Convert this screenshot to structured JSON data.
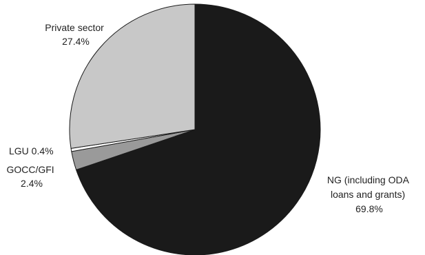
{
  "chart_data": {
    "type": "pie",
    "title": "",
    "slices": [
      {
        "label": "NG (including ODA loans and grants)",
        "value": 69.8,
        "color": "#1a1a1a",
        "label_lines": [
          "NG (including ODA",
          "loans and grants)",
          "69.8%"
        ]
      },
      {
        "label": "GOCC/GFI",
        "value": 2.4,
        "color": "#9a9a9a",
        "label_lines": [
          "GOCC/GFI",
          "2.4%"
        ]
      },
      {
        "label": "LGU",
        "value": 0.4,
        "color": "#ffffff",
        "label_lines": [
          "LGU 0.4%"
        ]
      },
      {
        "label": "Private sector",
        "value": 27.4,
        "color": "#c8c8c8",
        "label_lines": [
          "Private sector",
          "27.4%"
        ]
      }
    ],
    "start_angle_deg": 0,
    "direction": "clockwise",
    "slice_outline_color": "#1a1a1a",
    "legend": "none"
  }
}
